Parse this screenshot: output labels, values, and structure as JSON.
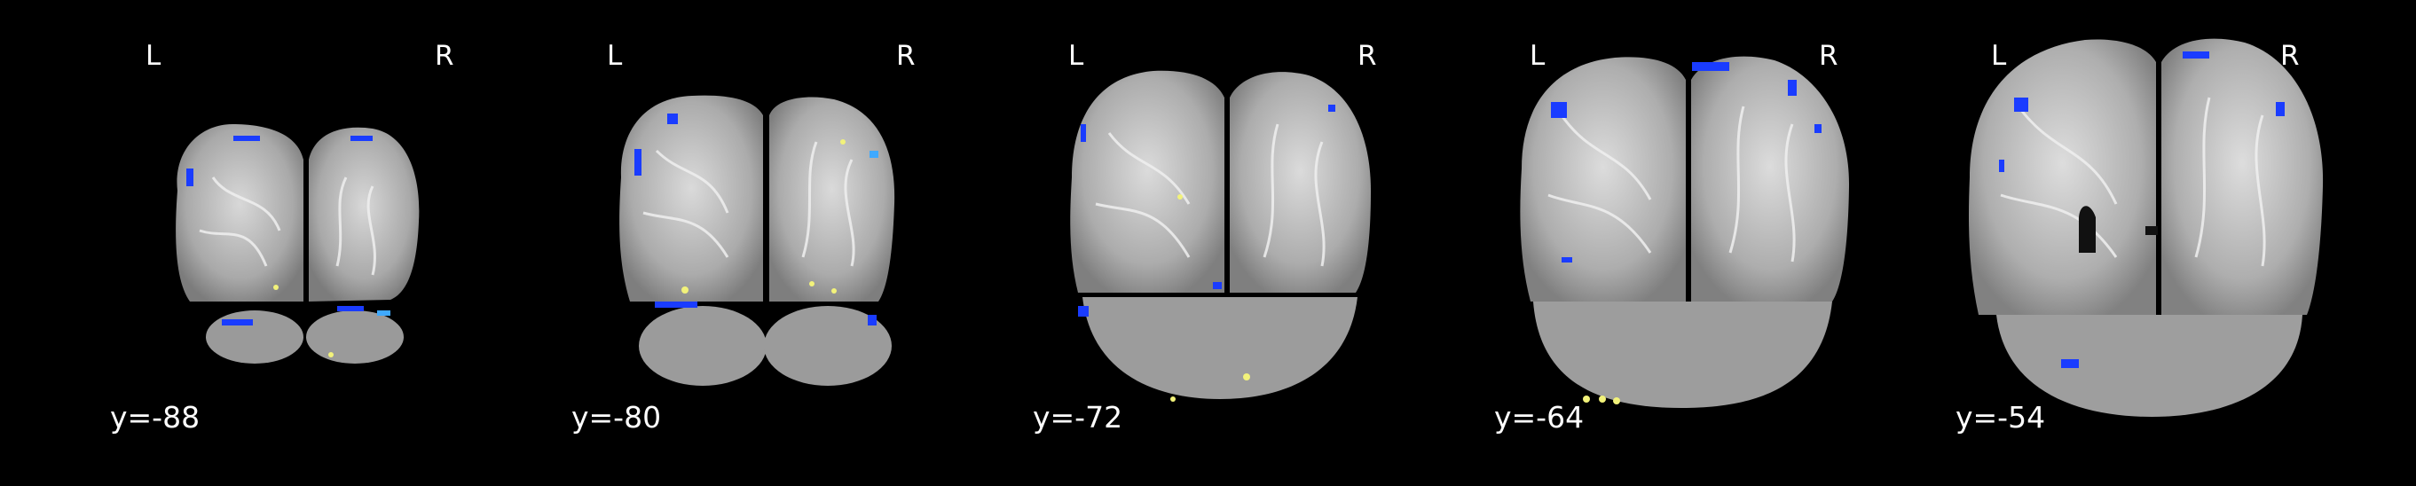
{
  "orientation": {
    "left_label": "L",
    "right_label": "R"
  },
  "colors": {
    "background": "#000000",
    "negative_activation": "#1a3cff",
    "negative_activation_light": "#3fa9ff",
    "positive_activation": "#f2f27a",
    "label_text": "#ffffff"
  },
  "view": "coronal",
  "slices": [
    {
      "coord_label": "y=-88"
    },
    {
      "coord_label": "y=-80"
    },
    {
      "coord_label": "y=-72"
    },
    {
      "coord_label": "y=-64"
    },
    {
      "coord_label": "y=-54"
    }
  ]
}
